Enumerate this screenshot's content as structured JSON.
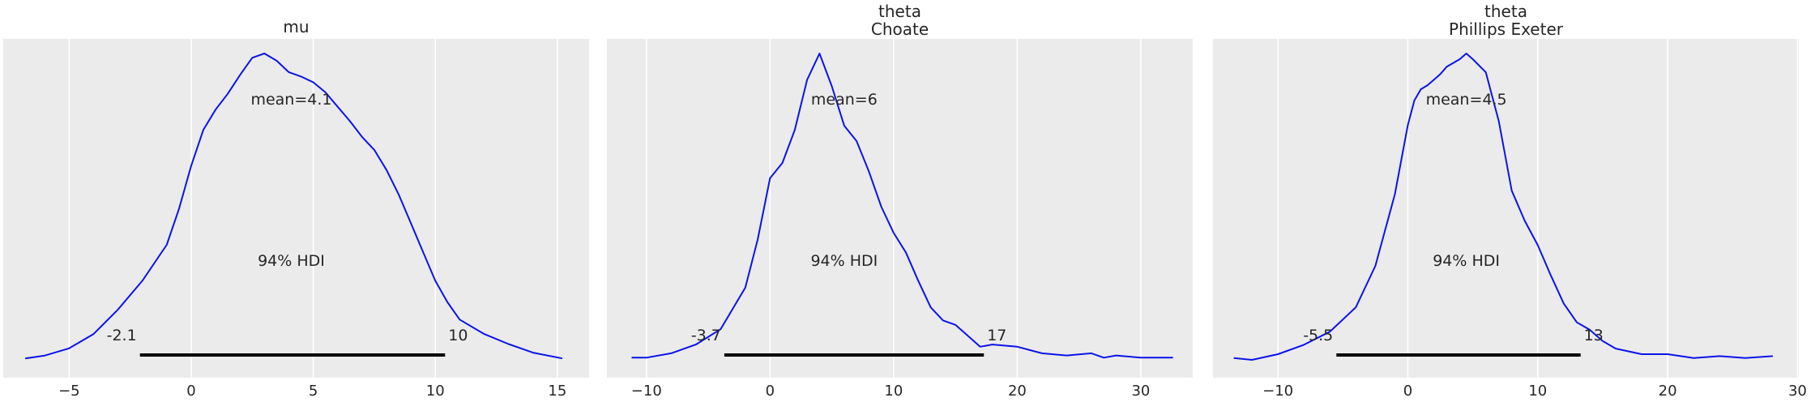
{
  "figure": {
    "background": "#ffffff",
    "panel_background": "#ebebeb",
    "grid_color": "#ffffff",
    "line_color": "#0a14e6",
    "hdi_color": "#000000",
    "text_color": "#262626"
  },
  "chart_data": [
    {
      "type": "line",
      "title_lines": [
        "mu"
      ],
      "xlim": [
        -7.7,
        16.3
      ],
      "xticks": [
        -5,
        0,
        5,
        10,
        15
      ],
      "xtick_labels": [
        "−5",
        "0",
        "5",
        "10",
        "15"
      ],
      "grid": true,
      "mean_label": "mean=4.1",
      "mean": 4.1,
      "hdi_label": "94% HDI",
      "hdi": [
        -2.1,
        10.4
      ],
      "hdi_low_label": "-2.1",
      "hdi_high_label": "10",
      "series": [
        {
          "x": [
            -6.8,
            -6.0,
            -5.0,
            -4.0,
            -3.0,
            -2.0,
            -1.0,
            -0.5,
            0.0,
            0.5,
            1.0,
            1.5,
            2.0,
            2.5,
            3.0,
            3.5,
            4.0,
            4.5,
            5.0,
            5.5,
            6.0,
            6.5,
            7.0,
            7.5,
            8.0,
            8.5,
            9.0,
            9.5,
            10.0,
            10.5,
            11.0,
            12.0,
            13.0,
            14.0,
            15.2
          ],
          "y": [
            0.001,
            0.003,
            0.008,
            0.018,
            0.035,
            0.055,
            0.08,
            0.105,
            0.135,
            0.16,
            0.174,
            0.185,
            0.198,
            0.21,
            0.213,
            0.208,
            0.2,
            0.197,
            0.193,
            0.186,
            0.176,
            0.166,
            0.155,
            0.146,
            0.132,
            0.115,
            0.095,
            0.075,
            0.055,
            0.04,
            0.028,
            0.018,
            0.011,
            0.005,
            0.001
          ]
        }
      ]
    },
    {
      "type": "line",
      "title_lines": [
        "theta",
        "Choate"
      ],
      "xlim": [
        -13.2,
        34.2
      ],
      "xticks": [
        -10,
        0,
        10,
        20,
        30
      ],
      "xtick_labels": [
        "−10",
        "0",
        "10",
        "20",
        "30"
      ],
      "grid": true,
      "mean_label": "mean=6",
      "mean": 6,
      "hdi_label": "94% HDI",
      "hdi": [
        -3.7,
        17.3
      ],
      "hdi_low_label": "-3.7",
      "hdi_high_label": "17",
      "series": [
        {
          "x": [
            -11.2,
            -10.0,
            -8.0,
            -6.0,
            -4.0,
            -2.0,
            -1.0,
            0.0,
            1.0,
            2.0,
            3.0,
            4.0,
            5.0,
            6.0,
            7.0,
            8.0,
            9.0,
            10.0,
            11.0,
            12.0,
            13.0,
            14.0,
            15.0,
            16.0,
            17.0,
            18.0,
            20.0,
            22.0,
            24.0,
            26.0,
            27.0,
            28.0,
            30.0,
            32.6
          ],
          "y": [
            0.001,
            0.001,
            0.003,
            0.007,
            0.014,
            0.033,
            0.055,
            0.083,
            0.09,
            0.105,
            0.128,
            0.14,
            0.125,
            0.107,
            0.1,
            0.086,
            0.07,
            0.058,
            0.049,
            0.036,
            0.024,
            0.018,
            0.016,
            0.011,
            0.006,
            0.007,
            0.006,
            0.003,
            0.002,
            0.003,
            0.001,
            0.002,
            0.001,
            0.001
          ]
        }
      ]
    },
    {
      "type": "line",
      "title_lines": [
        "theta",
        "Phillips Exeter"
      ],
      "xlim": [
        -15.0,
        30.1
      ],
      "xticks": [
        -10,
        0,
        10,
        20,
        30
      ],
      "xtick_labels": [
        "−10",
        "0",
        "10",
        "20",
        "30"
      ],
      "grid": true,
      "mean_label": "mean=4.5",
      "mean": 4.5,
      "hdi_label": "94% HDI",
      "hdi": [
        -5.5,
        13.3
      ],
      "hdi_low_label": "-5.5",
      "hdi_high_label": "13",
      "series": [
        {
          "x": [
            -13.4,
            -12.0,
            -10.0,
            -8.0,
            -6.0,
            -4.0,
            -2.5,
            -1.0,
            0.0,
            0.5,
            1.0,
            1.5,
            2.0,
            2.5,
            3.0,
            4.0,
            4.5,
            5.0,
            6.0,
            7.0,
            8.0,
            9.0,
            10.0,
            11.0,
            12.0,
            13.0,
            14.0,
            15.0,
            16.0,
            18.0,
            20.0,
            22.0,
            24.0,
            26.0,
            28.1
          ],
          "y": [
            0.001,
            0.0,
            0.003,
            0.008,
            0.015,
            0.028,
            0.05,
            0.088,
            0.125,
            0.138,
            0.144,
            0.146,
            0.149,
            0.152,
            0.156,
            0.16,
            0.163,
            0.16,
            0.153,
            0.127,
            0.09,
            0.074,
            0.061,
            0.045,
            0.03,
            0.02,
            0.016,
            0.01,
            0.006,
            0.003,
            0.003,
            0.001,
            0.002,
            0.001,
            0.002
          ]
        }
      ]
    }
  ]
}
